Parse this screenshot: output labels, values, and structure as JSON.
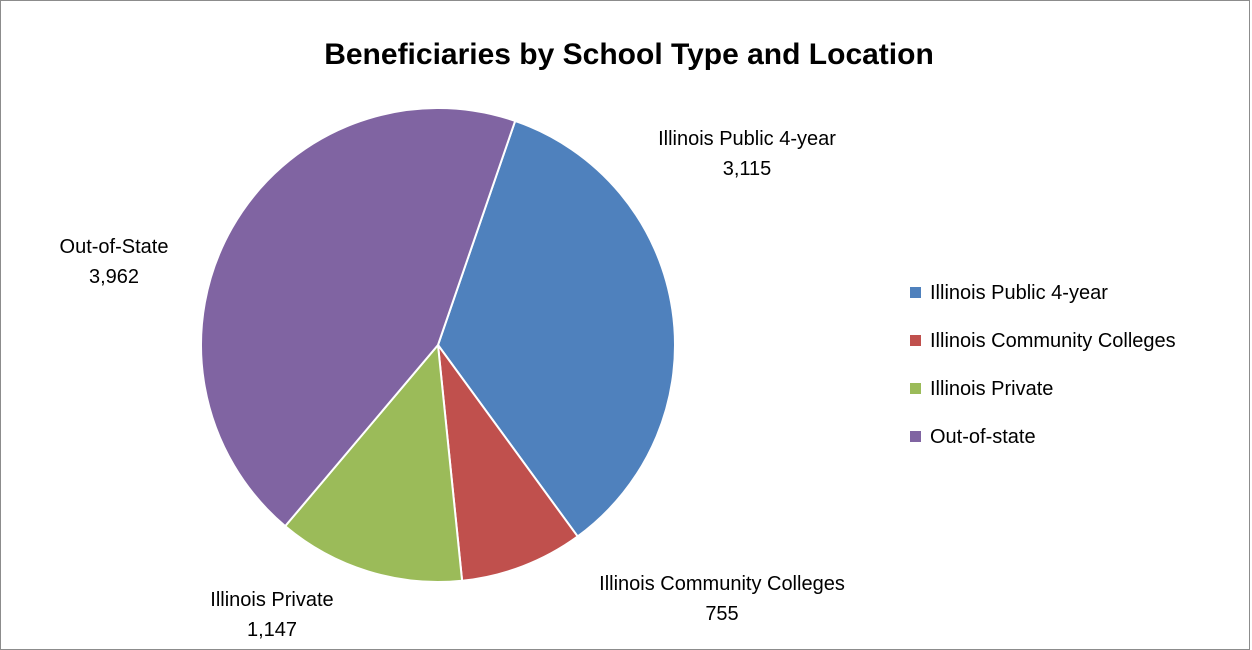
{
  "chart_data": {
    "type": "pie",
    "title": "Beneficiaries by School Type and Location",
    "series": [
      {
        "name": "Illinois Public 4-year",
        "label": "Illinois Public 4-year",
        "value": 3115,
        "value_text": "3,115",
        "color": "#4F81BD"
      },
      {
        "name": "Illinois Community Colleges",
        "label": "Illinois Community Colleges",
        "value": 755,
        "value_text": "755",
        "color": "#C0504D"
      },
      {
        "name": "Illinois Private",
        "label": "Illinois Private",
        "value": 1147,
        "value_text": "1,147",
        "color": "#9BBB59"
      },
      {
        "name": "Out-of-state",
        "label": "Out-of-State",
        "value": 3962,
        "value_text": "3,962",
        "color": "#8064A2"
      }
    ],
    "legend_position": "right",
    "start_angle_deg": 19,
    "direction": "clockwise"
  }
}
